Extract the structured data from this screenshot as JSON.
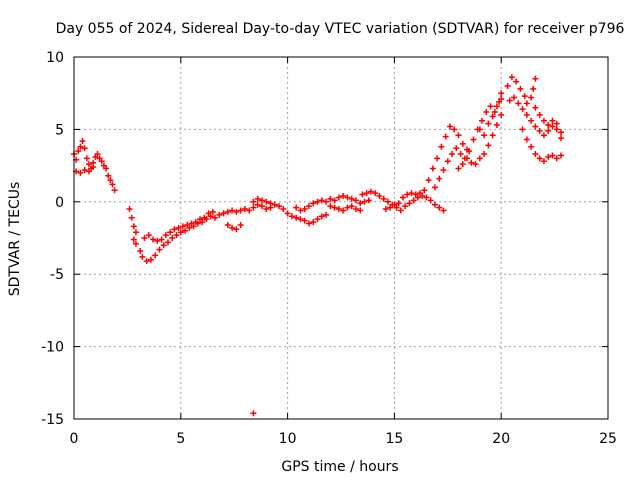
{
  "chart_data": {
    "type": "scatter",
    "title": "Day 055 of 2024, Sidereal Day-to-day VTEC variation (SDTVAR) for receiver p796",
    "xlabel": "GPS time / hours",
    "ylabel": "SDTVAR / TECUs",
    "xlim": [
      0,
      25
    ],
    "ylim": [
      -15,
      10
    ],
    "xticks": [
      0,
      5,
      10,
      15,
      20,
      25
    ],
    "yticks": [
      -15,
      -10,
      -5,
      0,
      5,
      10
    ],
    "grid": true,
    "marker": "+",
    "series": [
      {
        "name": "SDTVAR",
        "color": "#ff0000",
        "points": [
          [
            0.0,
            3.3
          ],
          [
            0.1,
            2.9
          ],
          [
            0.2,
            3.5
          ],
          [
            0.3,
            3.8
          ],
          [
            0.4,
            4.2
          ],
          [
            0.5,
            3.7
          ],
          [
            0.6,
            3.0
          ],
          [
            0.7,
            2.6
          ],
          [
            0.8,
            2.3
          ],
          [
            0.9,
            2.7
          ],
          [
            1.0,
            3.1
          ],
          [
            1.1,
            3.3
          ],
          [
            1.2,
            3.0
          ],
          [
            1.3,
            2.8
          ],
          [
            1.4,
            2.5
          ],
          [
            1.5,
            2.3
          ],
          [
            1.6,
            1.8
          ],
          [
            1.7,
            1.5
          ],
          [
            1.8,
            1.2
          ],
          [
            1.9,
            0.8
          ],
          [
            0.1,
            2.1
          ],
          [
            0.3,
            2.0
          ],
          [
            0.5,
            2.2
          ],
          [
            0.7,
            2.1
          ],
          [
            0.9,
            2.4
          ],
          [
            2.6,
            -0.5
          ],
          [
            2.7,
            -1.1
          ],
          [
            2.8,
            -1.7
          ],
          [
            2.9,
            -2.1
          ],
          [
            2.8,
            -2.6
          ],
          [
            2.9,
            -2.9
          ],
          [
            3.1,
            -3.4
          ],
          [
            3.2,
            -3.8
          ],
          [
            3.4,
            -4.1
          ],
          [
            3.6,
            -4.0
          ],
          [
            3.8,
            -3.7
          ],
          [
            4.0,
            -3.3
          ],
          [
            4.2,
            -3.0
          ],
          [
            4.4,
            -2.8
          ],
          [
            4.6,
            -2.5
          ],
          [
            4.8,
            -2.3
          ],
          [
            5.0,
            -2.1
          ],
          [
            5.2,
            -2.0
          ],
          [
            5.4,
            -1.8
          ],
          [
            5.6,
            -1.7
          ],
          [
            5.8,
            -1.5
          ],
          [
            6.0,
            -1.4
          ],
          [
            6.2,
            -1.2
          ],
          [
            6.4,
            -1.0
          ],
          [
            6.6,
            -1.1
          ],
          [
            6.8,
            -0.9
          ],
          [
            7.0,
            -0.8
          ],
          [
            7.2,
            -0.7
          ],
          [
            7.4,
            -0.6
          ],
          [
            7.6,
            -0.7
          ],
          [
            3.3,
            -2.5
          ],
          [
            3.5,
            -2.3
          ],
          [
            3.7,
            -2.6
          ],
          [
            3.9,
            -2.7
          ],
          [
            4.1,
            -2.6
          ],
          [
            4.3,
            -2.3
          ],
          [
            4.5,
            -2.1
          ],
          [
            4.7,
            -1.9
          ],
          [
            4.9,
            -1.8
          ],
          [
            5.1,
            -1.7
          ],
          [
            5.3,
            -1.6
          ],
          [
            5.5,
            -1.5
          ],
          [
            5.7,
            -1.4
          ],
          [
            5.9,
            -1.2
          ],
          [
            6.1,
            -1.1
          ],
          [
            6.3,
            -0.8
          ],
          [
            6.5,
            -0.7
          ],
          [
            7.2,
            -1.6
          ],
          [
            7.4,
            -1.8
          ],
          [
            7.6,
            -1.9
          ],
          [
            7.8,
            -1.6
          ],
          [
            7.8,
            -0.6
          ],
          [
            8.0,
            -0.5
          ],
          [
            8.2,
            -0.6
          ],
          [
            8.4,
            -0.4
          ],
          [
            8.6,
            -0.2
          ],
          [
            8.8,
            -0.3
          ],
          [
            9.0,
            -0.5
          ],
          [
            9.2,
            -0.4
          ],
          [
            9.4,
            -0.2
          ],
          [
            9.6,
            -0.3
          ],
          [
            9.8,
            -0.5
          ],
          [
            8.4,
            0.0
          ],
          [
            8.6,
            0.2
          ],
          [
            8.8,
            0.1
          ],
          [
            9.0,
            0.0
          ],
          [
            9.2,
            -0.1
          ],
          [
            8.4,
            -14.6
          ],
          [
            10.0,
            -0.8
          ],
          [
            10.2,
            -1.0
          ],
          [
            10.4,
            -1.1
          ],
          [
            10.6,
            -1.2
          ],
          [
            10.8,
            -1.3
          ],
          [
            11.0,
            -1.5
          ],
          [
            11.2,
            -1.4
          ],
          [
            11.4,
            -1.2
          ],
          [
            11.6,
            -1.0
          ],
          [
            11.8,
            -0.9
          ],
          [
            10.4,
            -0.4
          ],
          [
            10.6,
            -0.6
          ],
          [
            10.8,
            -0.5
          ],
          [
            11.0,
            -0.3
          ],
          [
            11.2,
            -0.1
          ],
          [
            11.4,
            0.0
          ],
          [
            11.6,
            0.1
          ],
          [
            11.8,
            0.0
          ],
          [
            12.0,
            -0.3
          ],
          [
            12.2,
            -0.4
          ],
          [
            12.4,
            -0.5
          ],
          [
            12.6,
            -0.6
          ],
          [
            12.0,
            0.2
          ],
          [
            12.2,
            0.1
          ],
          [
            12.4,
            0.3
          ],
          [
            12.6,
            0.4
          ],
          [
            12.8,
            0.3
          ],
          [
            13.0,
            0.2
          ],
          [
            13.2,
            0.1
          ],
          [
            13.4,
            -0.1
          ],
          [
            13.6,
            0.0
          ],
          [
            13.8,
            0.1
          ],
          [
            12.8,
            -0.4
          ],
          [
            13.0,
            -0.3
          ],
          [
            13.2,
            -0.5
          ],
          [
            13.4,
            -0.6
          ],
          [
            13.5,
            0.5
          ],
          [
            13.7,
            0.6
          ],
          [
            13.9,
            0.7
          ],
          [
            14.1,
            0.6
          ],
          [
            14.3,
            0.4
          ],
          [
            14.5,
            0.2
          ],
          [
            14.7,
            0.0
          ],
          [
            14.9,
            -0.2
          ],
          [
            15.1,
            -0.4
          ],
          [
            15.3,
            -0.6
          ],
          [
            14.6,
            -0.5
          ],
          [
            14.8,
            -0.4
          ],
          [
            15.0,
            -0.2
          ],
          [
            15.2,
            -0.1
          ],
          [
            15.5,
            -0.3
          ],
          [
            15.7,
            -0.1
          ],
          [
            15.9,
            0.1
          ],
          [
            16.1,
            0.3
          ],
          [
            16.3,
            0.4
          ],
          [
            16.5,
            0.3
          ],
          [
            16.7,
            0.1
          ],
          [
            16.9,
            -0.2
          ],
          [
            17.1,
            -0.4
          ],
          [
            17.3,
            -0.6
          ],
          [
            15.4,
            0.3
          ],
          [
            15.6,
            0.5
          ],
          [
            15.8,
            0.6
          ],
          [
            16.0,
            0.5
          ],
          [
            16.2,
            0.6
          ],
          [
            16.4,
            0.8
          ],
          [
            16.6,
            1.5
          ],
          [
            16.8,
            2.3
          ],
          [
            17.0,
            3.0
          ],
          [
            17.2,
            3.8
          ],
          [
            17.4,
            4.5
          ],
          [
            17.6,
            5.2
          ],
          [
            17.8,
            5.0
          ],
          [
            18.0,
            4.6
          ],
          [
            18.2,
            4.0
          ],
          [
            18.4,
            3.6
          ],
          [
            16.9,
            1.0
          ],
          [
            17.1,
            1.6
          ],
          [
            17.3,
            2.2
          ],
          [
            17.5,
            2.8
          ],
          [
            17.7,
            3.3
          ],
          [
            17.9,
            3.7
          ],
          [
            18.1,
            3.3
          ],
          [
            18.3,
            3.0
          ],
          [
            18.5,
            3.5
          ],
          [
            18.7,
            4.3
          ],
          [
            18.9,
            5.0
          ],
          [
            19.1,
            5.6
          ],
          [
            19.3,
            6.2
          ],
          [
            19.5,
            6.6
          ],
          [
            19.7,
            6.2
          ],
          [
            19.9,
            6.9
          ],
          [
            20.0,
            7.5
          ],
          [
            18.0,
            2.3
          ],
          [
            18.2,
            2.6
          ],
          [
            18.4,
            3.0
          ],
          [
            18.6,
            2.7
          ],
          [
            18.8,
            2.6
          ],
          [
            19.0,
            3.0
          ],
          [
            19.2,
            3.3
          ],
          [
            19.4,
            3.9
          ],
          [
            19.6,
            4.6
          ],
          [
            19.8,
            5.3
          ],
          [
            20.0,
            6.0
          ],
          [
            19.0,
            5.0
          ],
          [
            19.2,
            4.6
          ],
          [
            19.4,
            5.4
          ],
          [
            19.6,
            5.9
          ],
          [
            19.8,
            6.6
          ],
          [
            20.0,
            7.1
          ],
          [
            20.3,
            8.0
          ],
          [
            20.5,
            8.6
          ],
          [
            20.7,
            8.3
          ],
          [
            20.9,
            7.8
          ],
          [
            21.1,
            7.3
          ],
          [
            20.4,
            7.0
          ],
          [
            20.6,
            7.2
          ],
          [
            20.8,
            6.8
          ],
          [
            21.0,
            6.4
          ],
          [
            21.2,
            6.8
          ],
          [
            21.4,
            7.2
          ],
          [
            21.6,
            6.5
          ],
          [
            21.8,
            6.0
          ],
          [
            22.0,
            5.6
          ],
          [
            22.2,
            5.3
          ],
          [
            22.4,
            5.6
          ],
          [
            22.6,
            5.4
          ],
          [
            22.8,
            4.8
          ],
          [
            21.0,
            5.0
          ],
          [
            21.2,
            4.3
          ],
          [
            21.4,
            3.8
          ],
          [
            21.6,
            3.3
          ],
          [
            21.8,
            3.0
          ],
          [
            22.0,
            2.8
          ],
          [
            22.2,
            3.1
          ],
          [
            22.4,
            3.2
          ],
          [
            22.6,
            3.0
          ],
          [
            22.8,
            3.2
          ],
          [
            21.2,
            6.0
          ],
          [
            21.4,
            5.6
          ],
          [
            21.6,
            5.2
          ],
          [
            21.8,
            4.9
          ],
          [
            22.0,
            4.6
          ],
          [
            22.2,
            4.9
          ],
          [
            22.4,
            5.2
          ],
          [
            22.6,
            5.0
          ],
          [
            22.8,
            4.4
          ],
          [
            21.6,
            8.5
          ],
          [
            21.5,
            7.8
          ]
        ]
      }
    ]
  }
}
